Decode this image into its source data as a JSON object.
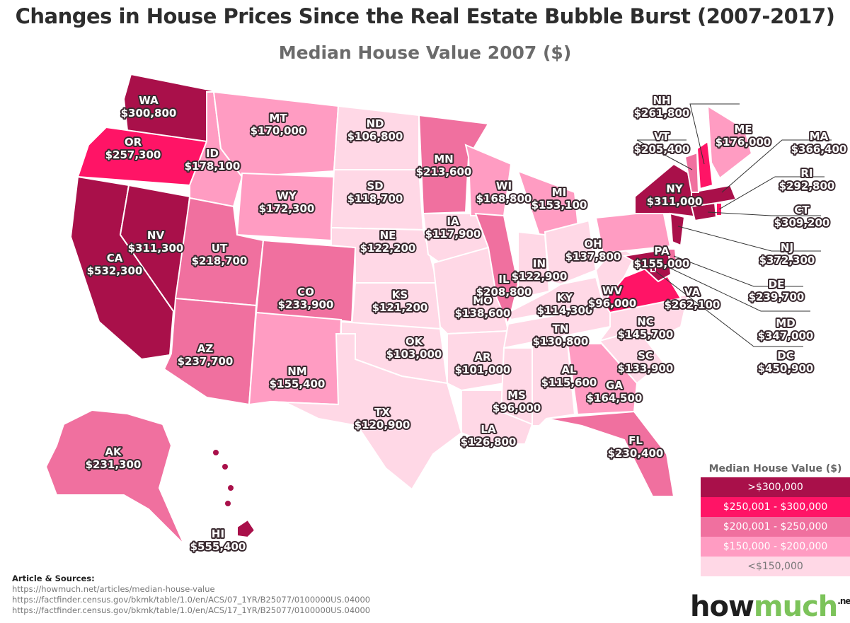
{
  "title": "Changes in House Prices Since the Real Estate Bubble Burst (2007-2017)",
  "subtitle": "Median House Value 2007 ($)",
  "legend": {
    "title": "Median House Value ($)",
    "classes": [
      {
        "label": ">$300,000",
        "color": "#a9104a",
        "text_color": "#ffffff"
      },
      {
        "label": "$250,001 - $300,000",
        "color": "#ff1466",
        "text_color": "#ffffff"
      },
      {
        "label": "$200,001 - $250,000",
        "color": "#f0709f",
        "text_color": "#ffffff"
      },
      {
        "label": "$150,000 - $200,000",
        "color": "#ff9cc2",
        "text_color": "#ffffff"
      },
      {
        "label": "<$150,000",
        "color": "#ffd8e6",
        "text_color": "#777777"
      }
    ]
  },
  "states": [
    {
      "abbr": "WA",
      "value": "$300,800",
      "class": 0
    },
    {
      "abbr": "OR",
      "value": "$257,300",
      "class": 1
    },
    {
      "abbr": "CA",
      "value": "$532,300",
      "class": 0
    },
    {
      "abbr": "NV",
      "value": "$311,300",
      "class": 0
    },
    {
      "abbr": "ID",
      "value": "$178,100",
      "class": 3
    },
    {
      "abbr": "MT",
      "value": "$170,000",
      "class": 3
    },
    {
      "abbr": "WY",
      "value": "$172,300",
      "class": 3
    },
    {
      "abbr": "UT",
      "value": "$218,700",
      "class": 2
    },
    {
      "abbr": "AZ",
      "value": "$237,700",
      "class": 2
    },
    {
      "abbr": "CO",
      "value": "$233,900",
      "class": 2
    },
    {
      "abbr": "NM",
      "value": "$155,400",
      "class": 3
    },
    {
      "abbr": "ND",
      "value": "$106,800",
      "class": 4
    },
    {
      "abbr": "SD",
      "value": "$118,700",
      "class": 4
    },
    {
      "abbr": "NE",
      "value": "$122,200",
      "class": 4
    },
    {
      "abbr": "KS",
      "value": "$121,200",
      "class": 4
    },
    {
      "abbr": "OK",
      "value": "$103,000",
      "class": 4
    },
    {
      "abbr": "TX",
      "value": "$120,900",
      "class": 4
    },
    {
      "abbr": "MN",
      "value": "$213,600",
      "class": 2
    },
    {
      "abbr": "IA",
      "value": "$117,900",
      "class": 4
    },
    {
      "abbr": "MO",
      "value": "$138,600",
      "class": 4
    },
    {
      "abbr": "AR",
      "value": "$101,000",
      "class": 4
    },
    {
      "abbr": "LA",
      "value": "$126,800",
      "class": 4
    },
    {
      "abbr": "WI",
      "value": "$168,800",
      "class": 3
    },
    {
      "abbr": "IL",
      "value": "$208,800",
      "class": 2
    },
    {
      "abbr": "MI",
      "value": "$153,100",
      "class": 3
    },
    {
      "abbr": "IN",
      "value": "$122,900",
      "class": 4
    },
    {
      "abbr": "OH",
      "value": "$137,800",
      "class": 4
    },
    {
      "abbr": "KY",
      "value": "$114,300",
      "class": 4
    },
    {
      "abbr": "TN",
      "value": "$130,800",
      "class": 4
    },
    {
      "abbr": "MS",
      "value": "$96,000",
      "class": 4
    },
    {
      "abbr": "AL",
      "value": "$115,600",
      "class": 4
    },
    {
      "abbr": "GA",
      "value": "$164,500",
      "class": 3
    },
    {
      "abbr": "FL",
      "value": "$230,400",
      "class": 2
    },
    {
      "abbr": "SC",
      "value": "$133,900",
      "class": 4
    },
    {
      "abbr": "NC",
      "value": "$145,700",
      "class": 4
    },
    {
      "abbr": "VA",
      "value": "$262,100",
      "class": 1
    },
    {
      "abbr": "WV",
      "value": "$96,000",
      "class": 4
    },
    {
      "abbr": "PA",
      "value": "$155,000",
      "class": 3
    },
    {
      "abbr": "NY",
      "value": "$311,000",
      "class": 0
    },
    {
      "abbr": "NJ",
      "value": "$372,300",
      "class": 0
    },
    {
      "abbr": "DE",
      "value": "$239,700",
      "class": 2
    },
    {
      "abbr": "MD",
      "value": "$347,000",
      "class": 0
    },
    {
      "abbr": "DC",
      "value": "$450,900",
      "class": 0
    },
    {
      "abbr": "CT",
      "value": "$309,200",
      "class": 0
    },
    {
      "abbr": "RI",
      "value": "$292,800",
      "class": 1
    },
    {
      "abbr": "MA",
      "value": "$366,400",
      "class": 0
    },
    {
      "abbr": "VT",
      "value": "$205,400",
      "class": 2
    },
    {
      "abbr": "NH",
      "value": "$261,800",
      "class": 1
    },
    {
      "abbr": "ME",
      "value": "$176,000",
      "class": 3
    },
    {
      "abbr": "AK",
      "value": "$231,300",
      "class": 2
    },
    {
      "abbr": "HI",
      "value": "$555,400",
      "class": 0
    }
  ],
  "sources": {
    "title": "Article & Sources:",
    "lines": [
      "https://howmuch.net/articles/median-house-value",
      "https://factfinder.census.gov/bkmk/table/1.0/en/ACS/07_1YR/B25077/0100000US.04000",
      "https://factfinder.census.gov/bkmk/table/1.0/en/ACS/17_1YR/B25077/0100000US.04000"
    ]
  },
  "logo": {
    "part1": "how",
    "part2": "much",
    "suffix": ".net"
  }
}
